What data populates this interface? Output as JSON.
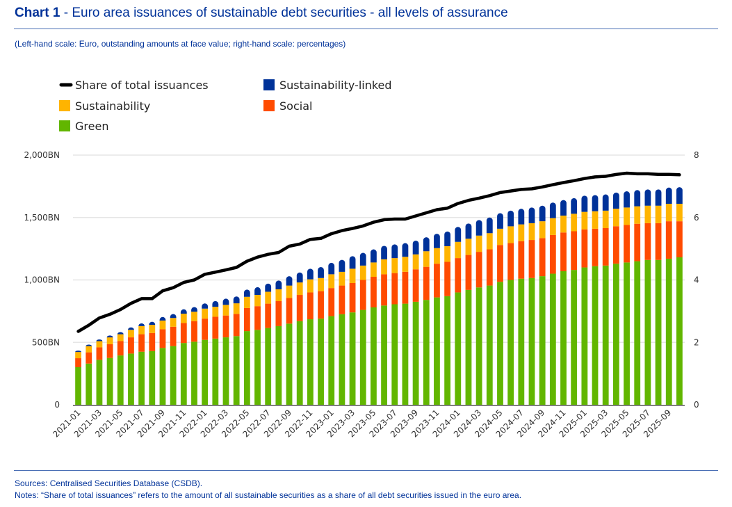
{
  "header": {
    "title_bold": "Chart 1",
    "title_rest": " - Euro area issuances of sustainable debt securities - all levels of assurance",
    "subtitle": "(Left-hand scale: Euro, outstanding amounts at face value; right-hand scale: percentages)"
  },
  "footer": {
    "sources": "Sources: Centralised Securities Database (CSDB).",
    "notes": "Notes: “Share of total issuances” refers to the amount of all sustainable securities as a share of all debt securities issued in the euro area."
  },
  "colors": {
    "green": "#62b600",
    "social": "#ff4b00",
    "sustainability": "#ffb400",
    "sustainability_linked": "#003299",
    "line": "#000000"
  },
  "chart_data": {
    "type": "bar",
    "stacked": true,
    "title": "Euro area issuances of sustainable debt securities - all levels of assurance",
    "xlabel": "",
    "ylabel": "Euro, outstanding amounts at face value",
    "y2label": "percentages",
    "ylim": [
      0,
      2000
    ],
    "y2lim": [
      0,
      8
    ],
    "yticks": [
      "0",
      "500BN",
      "1,000BN",
      "1,500BN",
      "2,000BN"
    ],
    "ytick_values": [
      0,
      500,
      1000,
      1500,
      2000
    ],
    "y2ticks": [
      "0",
      "2",
      "4",
      "6",
      "8"
    ],
    "y2tick_values": [
      0,
      2,
      4,
      6,
      8
    ],
    "grid": true,
    "legend": [
      {
        "name": "Share of total issuances",
        "type": "line",
        "color_key": "line"
      },
      {
        "name": "Sustainability-linked",
        "type": "bar",
        "color_key": "sustainability_linked"
      },
      {
        "name": "Sustainability",
        "type": "bar",
        "color_key": "sustainability"
      },
      {
        "name": "Social",
        "type": "bar",
        "color_key": "social"
      },
      {
        "name": "Green",
        "type": "bar",
        "color_key": "green"
      }
    ],
    "legend_position": "top-left",
    "x_tick_labels": [
      "2021-01",
      "2021-03",
      "2021-05",
      "2021-07",
      "2021-09",
      "2021-11",
      "2022-01",
      "2022-03",
      "2022-05",
      "2022-07",
      "2022-09",
      "2022-11",
      "2023-01",
      "2023-03",
      "2023-05",
      "2023-07",
      "2023-09",
      "2023-11",
      "2024-01",
      "2024-03",
      "2024-05",
      "2024-07",
      "2024-09",
      "2024-11",
      "2025-01",
      "2025-03",
      "2025-05",
      "2025-07",
      "2025-09"
    ],
    "categories": [
      "2021-01",
      "2021-02",
      "2021-03",
      "2021-04",
      "2021-05",
      "2021-06",
      "2021-07",
      "2021-08",
      "2021-09",
      "2021-10",
      "2021-11",
      "2021-12",
      "2022-01",
      "2022-02",
      "2022-03",
      "2022-04",
      "2022-05",
      "2022-06",
      "2022-07",
      "2022-08",
      "2022-09",
      "2022-10",
      "2022-11",
      "2022-12",
      "2023-01",
      "2023-02",
      "2023-03",
      "2023-04",
      "2023-05",
      "2023-06",
      "2023-07",
      "2023-08",
      "2023-09",
      "2023-10",
      "2023-11",
      "2023-12",
      "2024-01",
      "2024-02",
      "2024-03",
      "2024-04",
      "2024-05",
      "2024-06",
      "2024-07",
      "2024-08",
      "2024-09",
      "2024-10",
      "2024-11",
      "2024-12",
      "2025-01",
      "2025-02",
      "2025-03",
      "2025-04",
      "2025-05",
      "2025-06",
      "2025-07",
      "2025-08",
      "2025-09",
      "2025-10"
    ],
    "series": [
      {
        "name": "Green",
        "color_key": "green",
        "values": [
          301,
          330,
          360,
          375,
          395,
          410,
          425,
          430,
          455,
          470,
          495,
          505,
          520,
          530,
          540,
          550,
          590,
          600,
          615,
          630,
          650,
          670,
          685,
          690,
          710,
          725,
          740,
          760,
          780,
          795,
          805,
          810,
          825,
          840,
          860,
          870,
          900,
          920,
          940,
          955,
          985,
          1000,
          1010,
          1015,
          1030,
          1050,
          1070,
          1080,
          1100,
          1110,
          1115,
          1130,
          1140,
          1150,
          1160,
          1160,
          1170,
          1181
        ]
      },
      {
        "name": "Social",
        "color_key": "social",
        "values": [
          72,
          90,
          100,
          110,
          115,
          130,
          140,
          145,
          150,
          155,
          160,
          165,
          170,
          175,
          175,
          178,
          185,
          190,
          195,
          200,
          205,
          210,
          215,
          220,
          225,
          230,
          235,
          240,
          245,
          250,
          250,
          255,
          260,
          265,
          270,
          275,
          275,
          280,
          285,
          290,
          295,
          295,
          300,
          305,
          305,
          310,
          310,
          310,
          305,
          300,
          300,
          300,
          300,
          300,
          295,
          295,
          300,
          289
        ]
      },
      {
        "name": "Sustainability",
        "color_key": "sustainability",
        "values": [
          50,
          50,
          50,
          55,
          55,
          60,
          65,
          65,
          70,
          70,
          75,
          75,
          80,
          80,
          85,
          85,
          90,
          90,
          95,
          95,
          100,
          100,
          105,
          105,
          110,
          110,
          115,
          115,
          115,
          120,
          120,
          120,
          120,
          125,
          125,
          125,
          130,
          130,
          130,
          130,
          130,
          135,
          135,
          135,
          135,
          135,
          135,
          140,
          140,
          140,
          140,
          140,
          140,
          140,
          140,
          140,
          140,
          140
        ]
      },
      {
        "name": "Sustainability-linked",
        "color_key": "sustainability_linked",
        "values": [
          11,
          12,
          13,
          15,
          17,
          20,
          22,
          25,
          28,
          32,
          35,
          38,
          42,
          46,
          50,
          55,
          58,
          62,
          66,
          70,
          75,
          80,
          85,
          88,
          92,
          96,
          100,
          102,
          105,
          108,
          110,
          110,
          110,
          112,
          115,
          118,
          120,
          122,
          125,
          125,
          125,
          125,
          125,
          125,
          125,
          125,
          125,
          125,
          130,
          130,
          130,
          130,
          130,
          130,
          130,
          130,
          130,
          133
        ]
      },
      {
        "name": "Share of total issuances",
        "color_key": "line",
        "type": "line",
        "axis": "right",
        "values": [
          2.35,
          2.55,
          2.78,
          2.9,
          3.05,
          3.25,
          3.4,
          3.4,
          3.65,
          3.75,
          3.92,
          4.0,
          4.18,
          4.25,
          4.32,
          4.4,
          4.6,
          4.73,
          4.82,
          4.88,
          5.08,
          5.15,
          5.3,
          5.33,
          5.48,
          5.58,
          5.65,
          5.73,
          5.85,
          5.93,
          5.95,
          5.95,
          6.05,
          6.15,
          6.25,
          6.3,
          6.45,
          6.55,
          6.62,
          6.7,
          6.8,
          6.85,
          6.9,
          6.92,
          6.98,
          7.05,
          7.12,
          7.18,
          7.25,
          7.3,
          7.32,
          7.38,
          7.42,
          7.4,
          7.4,
          7.38,
          7.38,
          7.37
        ]
      }
    ]
  }
}
